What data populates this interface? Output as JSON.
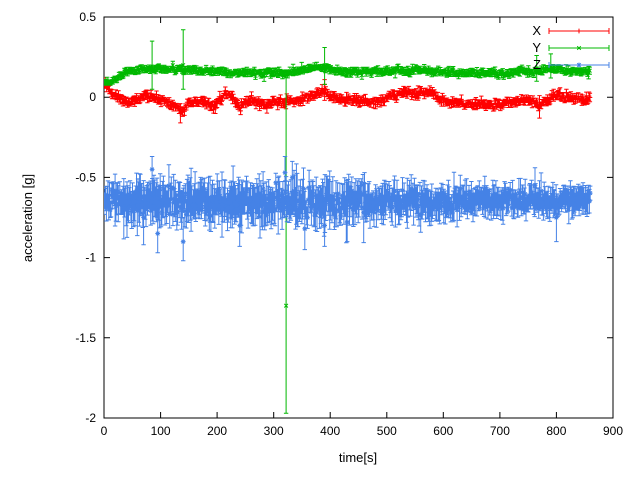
{
  "figure": {
    "background": "#ffffff",
    "border_color": "#000000",
    "text_color": "#000000"
  },
  "chart_data": {
    "type": "scatter",
    "title": "",
    "xlabel": "time[s]",
    "ylabel": "acceleration [g]",
    "xlim": [
      0,
      900
    ],
    "ylim": [
      -2,
      0.5
    ],
    "xticks": [
      0,
      100,
      200,
      300,
      400,
      500,
      600,
      700,
      800,
      900
    ],
    "xtick_labels": [
      "0",
      "100",
      "200",
      "300",
      "400",
      "500",
      "600",
      "700",
      "800",
      "900"
    ],
    "yticks": [
      -2,
      -1.5,
      -1,
      -0.5,
      0,
      0.5
    ],
    "ytick_labels": [
      "-2",
      "-1.5",
      "-1",
      "-0.5",
      "0",
      "0.5"
    ],
    "grid": false,
    "legend": {
      "position": "top-right",
      "entries": [
        "X",
        "Y",
        "Z"
      ]
    },
    "series": [
      {
        "name": "X",
        "color": "#ff0000",
        "marker": "plus",
        "style": "errorbars",
        "seed": 11,
        "step": 1.6,
        "anchors": [
          [
            0,
            0.09
          ],
          [
            8,
            0.05
          ],
          [
            15,
            0.02
          ],
          [
            30,
            -0.01
          ],
          [
            45,
            -0.03
          ],
          [
            60,
            -0.01
          ],
          [
            75,
            0.01
          ],
          [
            90,
            0.0
          ],
          [
            105,
            -0.02
          ],
          [
            120,
            -0.04
          ],
          [
            132,
            -0.08
          ],
          [
            140,
            -0.09
          ],
          [
            148,
            -0.03
          ],
          [
            160,
            -0.03
          ],
          [
            175,
            -0.02
          ],
          [
            190,
            -0.06
          ],
          [
            200,
            -0.04
          ],
          [
            212,
            0.02
          ],
          [
            222,
            0.02
          ],
          [
            232,
            -0.03
          ],
          [
            240,
            -0.07
          ],
          [
            250,
            -0.03
          ],
          [
            262,
            -0.01
          ],
          [
            275,
            -0.04
          ],
          [
            288,
            -0.05
          ],
          [
            300,
            -0.02
          ],
          [
            312,
            -0.04
          ],
          [
            325,
            -0.02
          ],
          [
            340,
            -0.03
          ],
          [
            352,
            -0.01
          ],
          [
            365,
            0.0
          ],
          [
            378,
            0.02
          ],
          [
            390,
            0.04
          ],
          [
            400,
            0.0
          ],
          [
            415,
            -0.01
          ],
          [
            430,
            -0.02
          ],
          [
            448,
            -0.02
          ],
          [
            465,
            -0.03
          ],
          [
            480,
            -0.03
          ],
          [
            495,
            -0.02
          ],
          [
            510,
            0.01
          ],
          [
            525,
            0.03
          ],
          [
            538,
            0.04
          ],
          [
            550,
            0.01
          ],
          [
            562,
            0.03
          ],
          [
            572,
            0.04
          ],
          [
            582,
            0.02
          ],
          [
            595,
            -0.01
          ],
          [
            610,
            -0.03
          ],
          [
            625,
            -0.04
          ],
          [
            640,
            -0.04
          ],
          [
            655,
            -0.05
          ],
          [
            668,
            -0.04
          ],
          [
            682,
            -0.05
          ],
          [
            695,
            -0.05
          ],
          [
            708,
            -0.04
          ],
          [
            720,
            -0.03
          ],
          [
            732,
            -0.02
          ],
          [
            745,
            -0.01
          ],
          [
            758,
            -0.02
          ],
          [
            770,
            -0.05
          ],
          [
            782,
            -0.02
          ],
          [
            792,
            0.0
          ],
          [
            805,
            0.01
          ],
          [
            818,
            0.0
          ],
          [
            832,
            -0.01
          ],
          [
            845,
            -0.01
          ],
          [
            860,
            -0.01
          ]
        ],
        "noise": [
          [
            0,
            0.011
          ],
          [
            860,
            0.011
          ]
        ],
        "err": [
          [
            0,
            0.02
          ],
          [
            860,
            0.02
          ]
        ],
        "outliers": [
          {
            "t": 135,
            "y": -0.1,
            "lo": -0.16,
            "hi": -0.04
          },
          {
            "t": 390,
            "y": 0.05,
            "lo": -0.02,
            "hi": 0.11
          },
          {
            "t": 770,
            "y": -0.06,
            "lo": -0.13,
            "hi": 0.01
          }
        ]
      },
      {
        "name": "Y",
        "color": "#00b800",
        "marker": "cross",
        "style": "errorbars",
        "seed": 22,
        "step": 1.9,
        "anchors": [
          [
            0,
            0.1
          ],
          [
            12,
            0.1
          ],
          [
            22,
            0.12
          ],
          [
            35,
            0.15
          ],
          [
            50,
            0.17
          ],
          [
            70,
            0.17
          ],
          [
            90,
            0.18
          ],
          [
            110,
            0.17
          ],
          [
            130,
            0.18
          ],
          [
            150,
            0.17
          ],
          [
            170,
            0.16
          ],
          [
            190,
            0.16
          ],
          [
            210,
            0.16
          ],
          [
            230,
            0.15
          ],
          [
            250,
            0.15
          ],
          [
            270,
            0.15
          ],
          [
            290,
            0.15
          ],
          [
            310,
            0.15
          ],
          [
            330,
            0.16
          ],
          [
            350,
            0.17
          ],
          [
            370,
            0.18
          ],
          [
            388,
            0.19
          ],
          [
            402,
            0.17
          ],
          [
            420,
            0.16
          ],
          [
            440,
            0.16
          ],
          [
            460,
            0.16
          ],
          [
            480,
            0.16
          ],
          [
            500,
            0.16
          ],
          [
            518,
            0.17
          ],
          [
            538,
            0.16
          ],
          [
            558,
            0.17
          ],
          [
            578,
            0.16
          ],
          [
            600,
            0.16
          ],
          [
            620,
            0.15
          ],
          [
            640,
            0.15
          ],
          [
            660,
            0.15
          ],
          [
            680,
            0.15
          ],
          [
            700,
            0.15
          ],
          [
            720,
            0.15
          ],
          [
            740,
            0.16
          ],
          [
            758,
            0.15
          ],
          [
            775,
            0.17
          ],
          [
            792,
            0.18
          ],
          [
            808,
            0.17
          ],
          [
            825,
            0.16
          ],
          [
            842,
            0.16
          ],
          [
            860,
            0.16
          ]
        ],
        "noise": [
          [
            0,
            0.008
          ],
          [
            860,
            0.008
          ]
        ],
        "err": [
          [
            0,
            0.018
          ],
          [
            860,
            0.018
          ]
        ],
        "outliers": [
          {
            "t": 85,
            "y": 0.18,
            "lo": 0.05,
            "hi": 0.35
          },
          {
            "t": 140,
            "y": 0.2,
            "lo": 0.05,
            "hi": 0.42
          },
          {
            "t": 322,
            "y": -1.3,
            "lo": -1.97,
            "hi": 0.17
          },
          {
            "t": 390,
            "y": 0.2,
            "lo": 0.08,
            "hi": 0.31
          },
          {
            "t": 765,
            "y": 0.18,
            "lo": 0.1,
            "hi": 0.26
          },
          {
            "t": 790,
            "y": 0.19,
            "lo": 0.12,
            "hi": 0.27
          }
        ]
      },
      {
        "name": "Z",
        "color": "#4582e6",
        "marker": "star",
        "style": "errorbars",
        "seed": 33,
        "step": 1.4,
        "anchors": [
          [
            0,
            -0.66
          ],
          [
            25,
            -0.65
          ],
          [
            50,
            -0.66
          ],
          [
            75,
            -0.65
          ],
          [
            100,
            -0.66
          ],
          [
            125,
            -0.65
          ],
          [
            150,
            -0.66
          ],
          [
            175,
            -0.65
          ],
          [
            200,
            -0.66
          ],
          [
            225,
            -0.65
          ],
          [
            250,
            -0.66
          ],
          [
            275,
            -0.65
          ],
          [
            300,
            -0.66
          ],
          [
            320,
            -0.64
          ],
          [
            340,
            -0.65
          ],
          [
            360,
            -0.66
          ],
          [
            380,
            -0.66
          ],
          [
            400,
            -0.65
          ],
          [
            425,
            -0.66
          ],
          [
            450,
            -0.65
          ],
          [
            475,
            -0.66
          ],
          [
            500,
            -0.65
          ],
          [
            525,
            -0.66
          ],
          [
            550,
            -0.65
          ],
          [
            575,
            -0.66
          ],
          [
            600,
            -0.65
          ],
          [
            625,
            -0.65
          ],
          [
            650,
            -0.65
          ],
          [
            675,
            -0.64
          ],
          [
            700,
            -0.65
          ],
          [
            725,
            -0.64
          ],
          [
            750,
            -0.65
          ],
          [
            775,
            -0.64
          ],
          [
            800,
            -0.65
          ],
          [
            830,
            -0.64
          ],
          [
            860,
            -0.64
          ]
        ],
        "noise": [
          [
            0,
            0.028
          ],
          [
            60,
            0.04
          ],
          [
            300,
            0.042
          ],
          [
            450,
            0.038
          ],
          [
            600,
            0.03
          ],
          [
            720,
            0.026
          ],
          [
            860,
            0.022
          ]
        ],
        "err": [
          [
            0,
            0.07
          ],
          [
            60,
            0.095
          ],
          [
            300,
            0.095
          ],
          [
            500,
            0.085
          ],
          [
            650,
            0.075
          ],
          [
            860,
            0.065
          ]
        ],
        "outliers": [
          {
            "t": 70,
            "y": -0.75,
            "lo": -0.92,
            "hi": -0.58
          },
          {
            "t": 85,
            "y": -0.45,
            "lo": -0.6,
            "hi": -0.37
          },
          {
            "t": 95,
            "y": -0.85,
            "lo": -0.97,
            "hi": -0.7
          },
          {
            "t": 140,
            "y": -0.9,
            "lo": -1.02,
            "hi": -0.75
          },
          {
            "t": 240,
            "y": -0.8,
            "lo": -0.93,
            "hi": -0.68
          },
          {
            "t": 320,
            "y": -0.47,
            "lo": -0.58,
            "hi": -0.37
          },
          {
            "t": 333,
            "y": -0.5,
            "lo": -0.62,
            "hi": -0.4
          },
          {
            "t": 355,
            "y": -0.82,
            "lo": -0.95,
            "hi": -0.7
          },
          {
            "t": 390,
            "y": -0.8,
            "lo": -0.93,
            "hi": -0.68
          },
          {
            "t": 430,
            "y": -0.78,
            "lo": -0.9,
            "hi": -0.66
          },
          {
            "t": 762,
            "y": -0.55,
            "lo": -0.68,
            "hi": -0.44
          },
          {
            "t": 800,
            "y": -0.75,
            "lo": -0.9,
            "hi": -0.62
          }
        ]
      }
    ]
  }
}
